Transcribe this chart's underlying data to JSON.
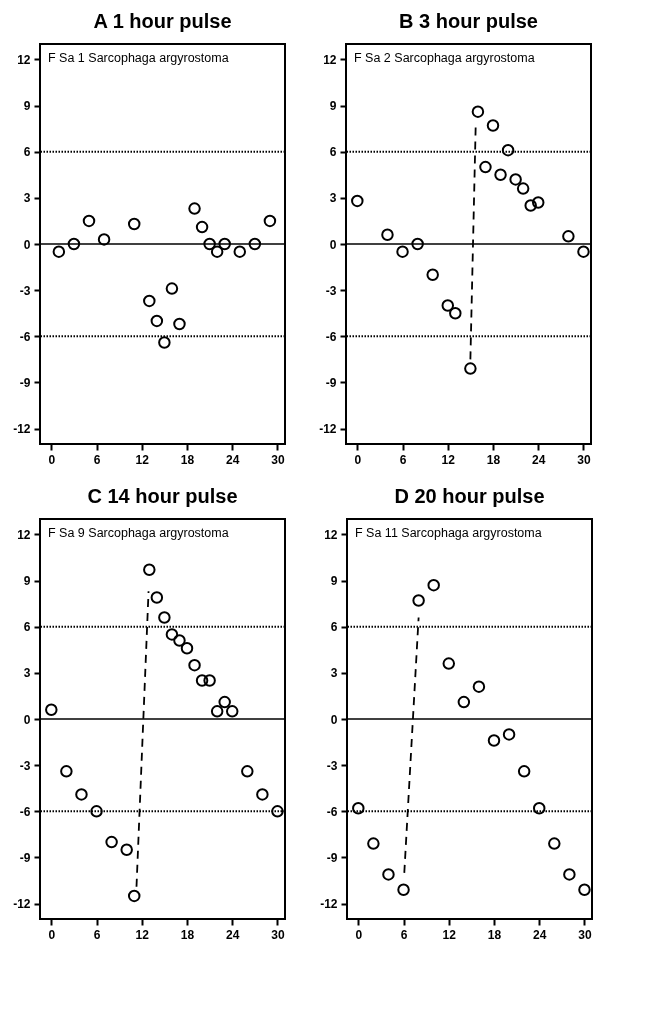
{
  "chart_data": [
    {
      "type": "scatter",
      "title": "A 1 hour pulse",
      "annotations": [
        "F Sa 1  Sarcophaga argyrostoma"
      ],
      "xlim": [
        -1.5,
        31
      ],
      "ylim": [
        -13,
        13
      ],
      "xticks": [
        0,
        6,
        12,
        18,
        24,
        30
      ],
      "yticks": [
        -12,
        -9,
        -6,
        -3,
        0,
        3,
        6,
        9,
        12
      ],
      "grid": false,
      "marker": "circle",
      "ref_lines": [
        {
          "axis": "y",
          "value": 6,
          "line_style": "dotted",
          "color": "#000000"
        },
        {
          "axis": "y",
          "value": 0,
          "line_style": "solid",
          "color": "#000000"
        },
        {
          "axis": "y",
          "value": -6,
          "line_style": "dotted",
          "color": "#000000"
        }
      ],
      "series": [
        {
          "color": "#000000",
          "x": [
            1,
            3,
            5,
            7,
            11,
            13,
            14,
            15,
            16,
            17,
            19,
            20,
            21,
            22,
            23,
            25,
            27,
            29
          ],
          "values": [
            -0.5,
            0,
            1.5,
            0.3,
            1.3,
            -3.7,
            -5,
            -6.4,
            -2.9,
            -5.2,
            2.3,
            1.1,
            0,
            -0.5,
            0,
            -0.5,
            0,
            1.5
          ]
        }
      ]
    },
    {
      "type": "scatter",
      "title": "B 3 hour pulse",
      "annotations": [
        "F Sa 2  Sarcophaga argyrostoma"
      ],
      "xlim": [
        -1.5,
        31
      ],
      "ylim": [
        -13,
        13
      ],
      "xticks": [
        0,
        6,
        12,
        18,
        24,
        30
      ],
      "yticks": [
        -12,
        -9,
        -6,
        -3,
        0,
        3,
        6,
        9,
        12
      ],
      "grid": false,
      "marker": "circle",
      "ref_lines": [
        {
          "axis": "y",
          "value": 6,
          "line_style": "dotted",
          "color": "#000000"
        },
        {
          "axis": "y",
          "value": 0,
          "line_style": "solid",
          "color": "#000000"
        },
        {
          "axis": "y",
          "value": -6,
          "line_style": "dotted",
          "color": "#000000"
        }
      ],
      "series": [
        {
          "color": "#000000",
          "x": [
            0,
            4,
            6,
            8,
            10,
            12,
            13,
            15,
            16,
            17,
            18,
            19,
            20,
            21,
            22,
            23,
            24,
            28,
            30
          ],
          "values": [
            2.8,
            0.6,
            -0.5,
            0,
            -2,
            -4,
            -4.5,
            -8.1,
            8.6,
            5,
            7.7,
            4.5,
            6.1,
            4.2,
            3.6,
            2.5,
            2.7,
            0.5,
            -0.5
          ]
        },
        {
          "type": "line",
          "color": "#000000",
          "line_style": "dashed",
          "marker": "none",
          "x": [
            15,
            15.7
          ],
          "values": [
            -7.5,
            7.6
          ]
        }
      ]
    },
    {
      "type": "scatter",
      "title": "C 14 hour pulse",
      "annotations": [
        "F Sa 9  Sarcophaga argyrostoma"
      ],
      "xlim": [
        -1.5,
        31
      ],
      "ylim": [
        -13,
        13
      ],
      "xticks": [
        0,
        6,
        12,
        18,
        24,
        30
      ],
      "yticks": [
        -12,
        -9,
        -6,
        -3,
        0,
        3,
        6,
        9,
        12
      ],
      "grid": false,
      "marker": "circle",
      "ref_lines": [
        {
          "axis": "y",
          "value": 6,
          "line_style": "dotted",
          "color": "#000000"
        },
        {
          "axis": "y",
          "value": 0,
          "line_style": "solid",
          "color": "#000000"
        },
        {
          "axis": "y",
          "value": -6,
          "line_style": "dotted",
          "color": "#000000"
        }
      ],
      "series": [
        {
          "color": "#000000",
          "x": [
            0,
            2,
            4,
            6,
            8,
            10,
            11,
            13,
            14,
            15,
            16,
            17,
            18,
            19,
            20,
            21,
            22,
            23,
            24,
            26,
            28,
            30
          ],
          "values": [
            0.6,
            -3.4,
            -4.9,
            -6,
            -8,
            -8.5,
            -11.5,
            9.7,
            7.9,
            6.6,
            5.5,
            5.1,
            4.6,
            3.5,
            2.5,
            2.5,
            0.5,
            1.1,
            0.5,
            -3.4,
            -4.9,
            -6
          ]
        },
        {
          "type": "line",
          "color": "#000000",
          "line_style": "dashed",
          "marker": "none",
          "x": [
            11.3,
            12.9
          ],
          "values": [
            -10.9,
            8.3
          ]
        }
      ]
    },
    {
      "type": "scatter",
      "title": "D 20 hour pulse",
      "annotations": [
        "F Sa 11  Sarcophaga argyrostoma"
      ],
      "xlim": [
        -1.5,
        31
      ],
      "ylim": [
        -13,
        13
      ],
      "xticks": [
        0,
        6,
        12,
        18,
        24,
        30
      ],
      "yticks": [
        -12,
        -9,
        -6,
        -3,
        0,
        3,
        6,
        9,
        12
      ],
      "grid": false,
      "marker": "circle",
      "ref_lines": [
        {
          "axis": "y",
          "value": 6,
          "line_style": "dotted",
          "color": "#000000"
        },
        {
          "axis": "y",
          "value": 0,
          "line_style": "solid",
          "color": "#000000"
        },
        {
          "axis": "y",
          "value": -6,
          "line_style": "dotted",
          "color": "#000000"
        }
      ],
      "series": [
        {
          "color": "#000000",
          "x": [
            0,
            2,
            4,
            6,
            8,
            10,
            12,
            14,
            16,
            18,
            20,
            22,
            24,
            26,
            28,
            30
          ],
          "values": [
            -5.8,
            -8.1,
            -10.1,
            -11.1,
            7.7,
            8.7,
            3.6,
            1.1,
            2.1,
            -1.4,
            -1,
            -3.4,
            -5.8,
            -8.1,
            -10.1,
            -11.1
          ]
        },
        {
          "type": "line",
          "color": "#000000",
          "line_style": "dashed",
          "marker": "none",
          "x": [
            6.1,
            8
          ],
          "values": [
            -10,
            6.6
          ]
        }
      ]
    }
  ]
}
